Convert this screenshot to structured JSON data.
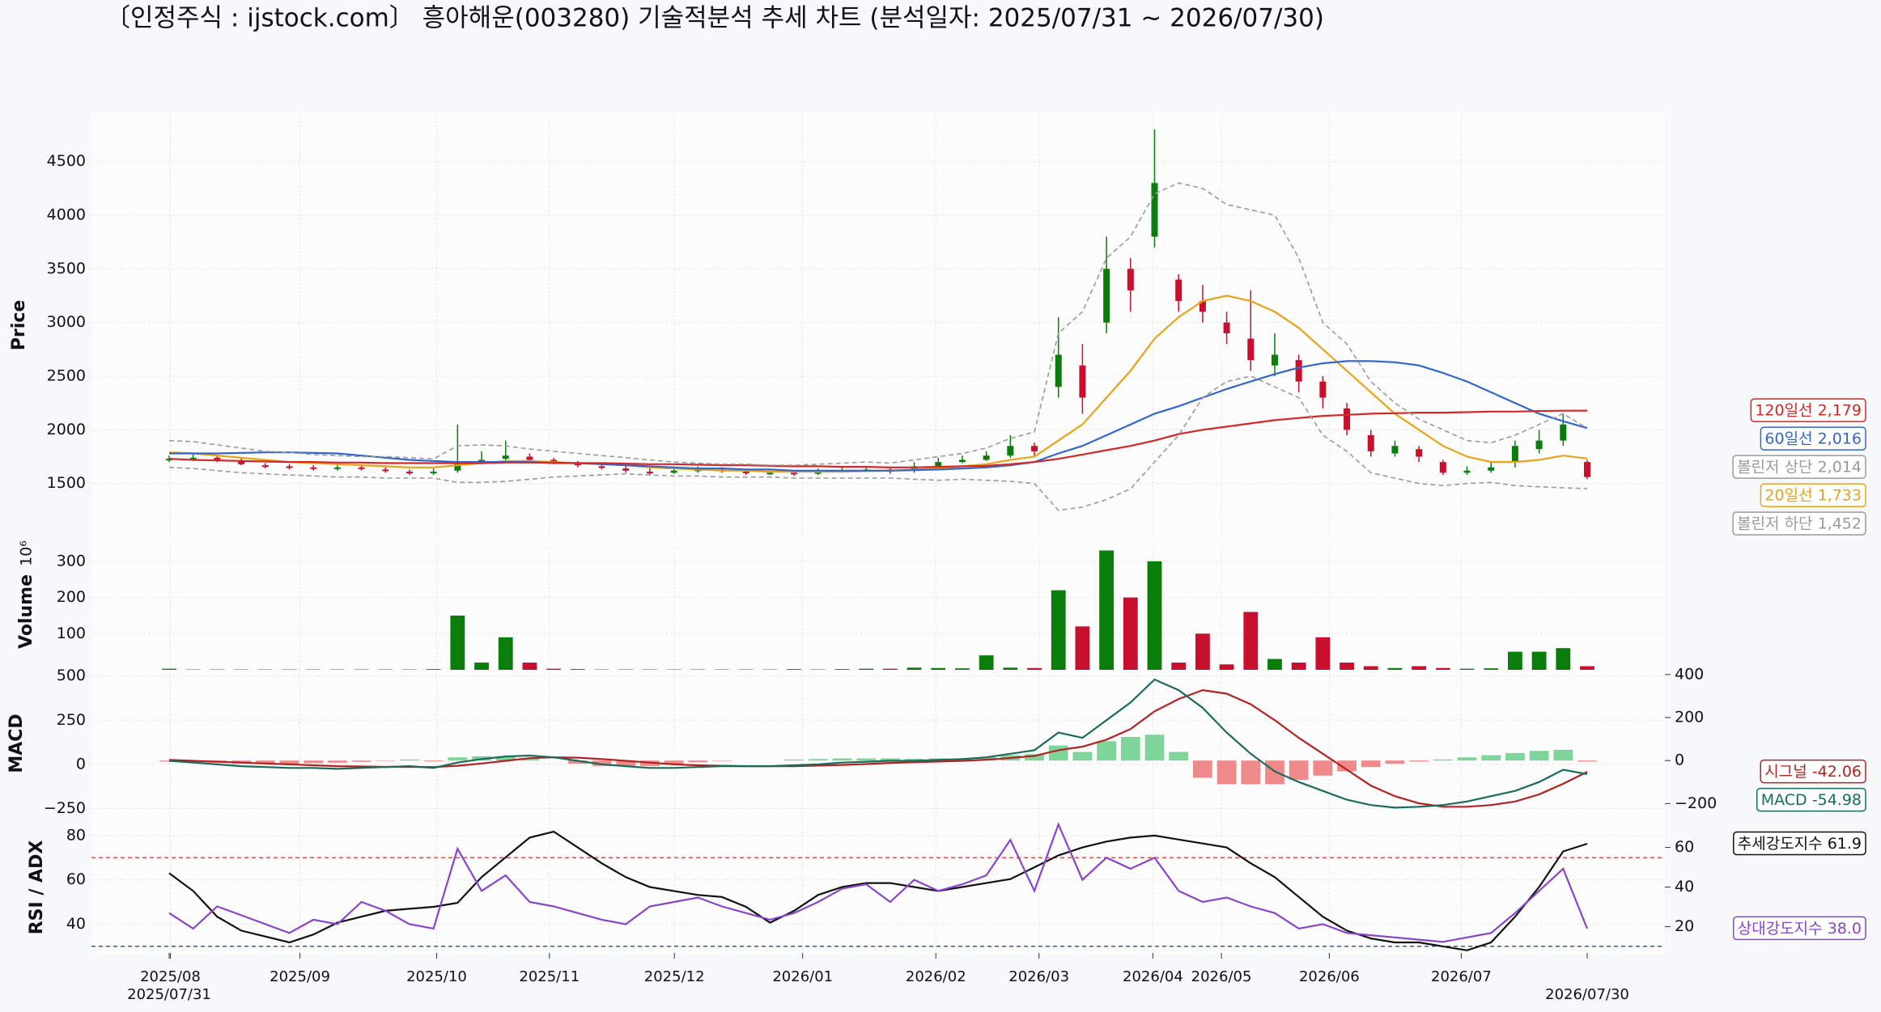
{
  "chart_data": [
    {
      "type": "candlestick",
      "title": "〔인정주식 : ijstock.com〕 흥아해운(003280) 기술적분석 추세 차트 (분석일자: 2025/07/31 ~ 2026/07/30)",
      "ylabel": "Price",
      "ylim": [
        1000,
        4950
      ],
      "yticks": [
        1500,
        2000,
        2500,
        3000,
        3500,
        4000,
        4500
      ],
      "grid": true,
      "ohlc": {
        "up_color": "#0a7d0a",
        "down_color": "#c8102e",
        "open": [
          1720,
          1730,
          1740,
          1710,
          1670,
          1660,
          1650,
          1640,
          1650,
          1630,
          1610,
          1600,
          1620,
          1700,
          1730,
          1750,
          1720,
          1690,
          1660,
          1640,
          1610,
          1600,
          1620,
          1630,
          1610,
          1600,
          1600,
          1590,
          1610,
          1620,
          1630,
          1620,
          1660,
          1700,
          1720,
          1760,
          1850,
          2400,
          2600,
          3000,
          3500,
          3800,
          3400,
          3200,
          3000,
          2850,
          2600,
          2650,
          2450,
          2200,
          1950,
          1780,
          1820,
          1700,
          1600,
          1620,
          1700,
          1820,
          1900,
          1700
        ],
        "high": [
          1760,
          1770,
          1760,
          1730,
          1690,
          1680,
          1670,
          1670,
          1670,
          1650,
          1630,
          1640,
          2050,
          1800,
          1900,
          1780,
          1740,
          1710,
          1680,
          1660,
          1640,
          1650,
          1660,
          1650,
          1630,
          1620,
          1620,
          1640,
          1650,
          1660,
          1650,
          1700,
          1740,
          1760,
          1800,
          1950,
          1880,
          3050,
          2800,
          3800,
          3600,
          4800,
          3450,
          3350,
          3100,
          3300,
          2900,
          2700,
          2500,
          2250,
          2000,
          1900,
          1850,
          1720,
          1660,
          1700,
          1900,
          2000,
          2150,
          1720
        ],
        "low": [
          1700,
          1710,
          1700,
          1670,
          1640,
          1630,
          1620,
          1620,
          1620,
          1600,
          1580,
          1580,
          1600,
          1680,
          1710,
          1700,
          1680,
          1650,
          1630,
          1600,
          1580,
          1590,
          1600,
          1600,
          1580,
          1580,
          1570,
          1580,
          1600,
          1610,
          1590,
          1600,
          1650,
          1690,
          1710,
          1740,
          1760,
          2300,
          2150,
          2900,
          3100,
          3700,
          3100,
          3000,
          2800,
          2550,
          2500,
          2350,
          2200,
          1950,
          1750,
          1750,
          1700,
          1580,
          1580,
          1600,
          1650,
          1780,
          1850,
          1540
        ],
        "close": [
          1730,
          1740,
          1720,
          1680,
          1660,
          1650,
          1640,
          1650,
          1640,
          1620,
          1600,
          1610,
          1700,
          1720,
          1760,
          1720,
          1700,
          1670,
          1650,
          1620,
          1600,
          1620,
          1630,
          1620,
          1600,
          1600,
          1590,
          1610,
          1620,
          1630,
          1610,
          1660,
          1700,
          1720,
          1760,
          1850,
          1800,
          2700,
          2300,
          3500,
          3300,
          4300,
          3200,
          3100,
          2900,
          2650,
          2700,
          2450,
          2300,
          2000,
          1800,
          1850,
          1750,
          1600,
          1620,
          1650,
          1850,
          1900,
          2050,
          1560
        ]
      },
      "series": [
        {
          "name": "20일선",
          "end_label": "1,733",
          "color": "#e8a317",
          "dash": false,
          "values": [
            1790,
            1780,
            1760,
            1740,
            1720,
            1700,
            1690,
            1680,
            1670,
            1660,
            1650,
            1650,
            1670,
            1690,
            1710,
            1710,
            1700,
            1690,
            1680,
            1670,
            1650,
            1640,
            1630,
            1620,
            1620,
            1610,
            1610,
            1610,
            1610,
            1615,
            1620,
            1630,
            1640,
            1660,
            1680,
            1720,
            1750,
            1900,
            2050,
            2300,
            2550,
            2850,
            3050,
            3200,
            3250,
            3200,
            3100,
            2950,
            2750,
            2550,
            2350,
            2150,
            2000,
            1850,
            1750,
            1700,
            1700,
            1720,
            1760,
            1733
          ]
        },
        {
          "name": "60일선",
          "end_label": "2,016",
          "color": "#3366cc",
          "dash": false,
          "values": [
            1780,
            1780,
            1780,
            1785,
            1790,
            1790,
            1785,
            1780,
            1760,
            1740,
            1720,
            1710,
            1700,
            1700,
            1700,
            1700,
            1690,
            1690,
            1680,
            1670,
            1660,
            1650,
            1640,
            1640,
            1630,
            1630,
            1620,
            1620,
            1620,
            1620,
            1620,
            1625,
            1630,
            1640,
            1650,
            1670,
            1700,
            1780,
            1850,
            1950,
            2050,
            2150,
            2220,
            2300,
            2380,
            2450,
            2520,
            2580,
            2620,
            2640,
            2640,
            2630,
            2600,
            2530,
            2450,
            2350,
            2250,
            2150,
            2080,
            2016
          ]
        },
        {
          "name": "120일선",
          "end_label": "2,179",
          "color": "#d62728",
          "dash": false,
          "values": [
            1730,
            1720,
            1715,
            1710,
            1705,
            1700,
            1700,
            1695,
            1695,
            1690,
            1690,
            1690,
            1690,
            1690,
            1695,
            1695,
            1695,
            1690,
            1690,
            1685,
            1680,
            1680,
            1675,
            1670,
            1670,
            1665,
            1660,
            1660,
            1655,
            1655,
            1650,
            1650,
            1655,
            1660,
            1665,
            1680,
            1700,
            1730,
            1770,
            1810,
            1850,
            1900,
            1960,
            2000,
            2030,
            2060,
            2090,
            2110,
            2130,
            2140,
            2150,
            2155,
            2160,
            2160,
            2165,
            2170,
            2170,
            2175,
            2178,
            2179
          ]
        },
        {
          "name": "볼린저 상단",
          "end_label": "2,014",
          "color": "#9a9a9a",
          "dash": true,
          "values": [
            1900,
            1890,
            1860,
            1830,
            1800,
            1790,
            1770,
            1760,
            1750,
            1750,
            1740,
            1730,
            1850,
            1860,
            1850,
            1820,
            1800,
            1780,
            1760,
            1740,
            1720,
            1700,
            1690,
            1680,
            1680,
            1670,
            1670,
            1680,
            1690,
            1700,
            1690,
            1720,
            1750,
            1780,
            1830,
            1920,
            1980,
            2900,
            3100,
            3600,
            3800,
            4200,
            4300,
            4250,
            4100,
            4050,
            4000,
            3600,
            3000,
            2800,
            2450,
            2250,
            2100,
            2000,
            1900,
            1880,
            1950,
            2050,
            2150,
            2014
          ]
        },
        {
          "name": "볼린저 하단",
          "end_label": "1,452",
          "color": "#9a9a9a",
          "dash": true,
          "values": [
            1650,
            1640,
            1620,
            1600,
            1590,
            1580,
            1570,
            1560,
            1560,
            1550,
            1550,
            1550,
            1510,
            1510,
            1520,
            1540,
            1560,
            1570,
            1580,
            1590,
            1580,
            1570,
            1570,
            1560,
            1560,
            1560,
            1550,
            1550,
            1550,
            1550,
            1550,
            1540,
            1530,
            1540,
            1530,
            1520,
            1500,
            1250,
            1280,
            1350,
            1450,
            1700,
            1950,
            2300,
            2450,
            2500,
            2400,
            2300,
            1950,
            1800,
            1600,
            1550,
            1500,
            1480,
            1500,
            1510,
            1480,
            1470,
            1460,
            1452
          ]
        }
      ]
    },
    {
      "type": "bar",
      "ylabel": "Volume",
      "scale_label": "10⁶",
      "ylim": [
        0,
        340
      ],
      "yticks": [
        100,
        200,
        300
      ],
      "grid": true,
      "values": [
        3,
        1,
        1,
        1,
        1,
        1,
        1,
        1,
        1,
        1,
        1,
        2,
        150,
        20,
        90,
        20,
        3,
        2,
        1,
        1,
        1,
        1,
        1,
        1,
        1,
        1,
        2,
        1,
        2,
        3,
        3,
        6,
        5,
        4,
        40,
        6,
        5,
        220,
        120,
        330,
        200,
        300,
        20,
        100,
        15,
        160,
        30,
        20,
        90,
        20,
        10,
        5,
        10,
        5,
        3,
        4,
        50,
        50,
        60,
        10
      ]
    },
    {
      "type": "line",
      "ylabel": "MACD",
      "ylim": [
        -330,
        535
      ],
      "yticks": [
        {
          "value": -250,
          "label": "−250"
        },
        0,
        250,
        500
      ],
      "y2lim": [
        -289,
        422
      ],
      "y2ticks": [
        {
          "value": -200,
          "label": "−200"
        },
        0,
        200,
        400
      ],
      "grid": true,
      "series": [
        {
          "type": "bar",
          "axis": "y2",
          "pos_color": "#7fd49a",
          "neg_color": "#f08a8a",
          "values": [
            -5,
            -10,
            -10,
            -15,
            -15,
            -15,
            -12,
            -10,
            -6,
            -2,
            5,
            -4,
            15,
            20,
            20,
            12,
            0,
            -15,
            -25,
            -25,
            -25,
            -15,
            -8,
            -2,
            0,
            0,
            5,
            7,
            10,
            10,
            10,
            8,
            10,
            10,
            15,
            25,
            30,
            70,
            40,
            90,
            110,
            120,
            40,
            -80,
            -110,
            -110,
            -110,
            -90,
            -70,
            -50,
            -30,
            -15,
            -5,
            5,
            15,
            25,
            35,
            45,
            50,
            -5
          ]
        },
        {
          "name": "시그널",
          "end_label": "-42.06",
          "color": "#b22222",
          "values": [
            25,
            20,
            15,
            10,
            5,
            0,
            -5,
            -10,
            -12,
            -14,
            -14,
            -15,
            -8,
            5,
            20,
            35,
            40,
            38,
            30,
            20,
            10,
            0,
            -5,
            -8,
            -10,
            -10,
            -10,
            -7,
            -3,
            2,
            8,
            12,
            16,
            20,
            26,
            36,
            48,
            80,
            100,
            140,
            200,
            300,
            370,
            420,
            400,
            340,
            250,
            150,
            60,
            -30,
            -120,
            -180,
            -220,
            -240,
            -240,
            -230,
            -210,
            -170,
            -110,
            -42.06
          ]
        },
        {
          "name": "MACD",
          "end_label": "-54.98",
          "color": "#1a6b5a",
          "values": [
            20,
            10,
            0,
            -10,
            -15,
            -20,
            -20,
            -25,
            -20,
            -15,
            -10,
            -20,
            10,
            30,
            45,
            50,
            40,
            20,
            0,
            -10,
            -20,
            -20,
            -15,
            -10,
            -10,
            -10,
            -5,
            0,
            10,
            15,
            20,
            20,
            25,
            30,
            40,
            60,
            80,
            180,
            150,
            250,
            350,
            480,
            420,
            320,
            180,
            60,
            -40,
            -100,
            -150,
            -200,
            -230,
            -245,
            -240,
            -230,
            -210,
            -180,
            -150,
            -100,
            -30,
            -54.98
          ]
        }
      ]
    },
    {
      "type": "line",
      "ylabel": "RSI / ADX",
      "ylim": [
        27,
        85.4
      ],
      "yticks": [
        40,
        60,
        80
      ],
      "y2lim": [
        6.7,
        72.1
      ],
      "y2ticks": [
        20,
        40,
        60
      ],
      "grid": true,
      "hlines": [
        {
          "value": 70,
          "color": "#d9534f"
        },
        {
          "value": 30,
          "color": "#1f5fbf"
        }
      ],
      "xticks": [
        {
          "value": 0.05,
          "label": "2025/08"
        },
        {
          "value": 5.44,
          "label": "2025/09"
        },
        {
          "value": 11.13,
          "label": "2025/10"
        },
        {
          "value": 15.82,
          "label": "2025/11"
        },
        {
          "value": 21.02,
          "label": "2025/12"
        },
        {
          "value": 26.36,
          "label": "2026/01"
        },
        {
          "value": 31.9,
          "label": "2026/02"
        },
        {
          "value": 36.19,
          "label": "2026/03"
        },
        {
          "value": 40.93,
          "label": "2026/04"
        },
        {
          "value": 43.78,
          "label": "2026/05"
        },
        {
          "value": 48.27,
          "label": "2026/06"
        },
        {
          "value": 53.76,
          "label": "2026/07"
        }
      ],
      "x_end_ticks": [
        {
          "value": 0,
          "label": "2025/07/31"
        },
        {
          "value": 59,
          "label": "2026/07/30"
        }
      ],
      "series": [
        {
          "name": "추세강도지수",
          "end_label": "61.9",
          "color": "#111111",
          "axis": "y2",
          "values": [
            47,
            38,
            25,
            18,
            15,
            12,
            16,
            22,
            25,
            28,
            29,
            30,
            32,
            45,
            55,
            65,
            68,
            60,
            52,
            45,
            40,
            38,
            36,
            35,
            30,
            22,
            28,
            36,
            40,
            42,
            42,
            40,
            38,
            40,
            42,
            44,
            50,
            56,
            60,
            63,
            65,
            66,
            64,
            62,
            60,
            52,
            45,
            35,
            25,
            18,
            14,
            12,
            12,
            10,
            8,
            12,
            25,
            40,
            58,
            61.9
          ]
        },
        {
          "name": "상대강도지수",
          "end_label": "38.0",
          "color": "#8844cc",
          "values": [
            45,
            38,
            48,
            44,
            40,
            36,
            42,
            40,
            50,
            46,
            40,
            38,
            74,
            55,
            62,
            50,
            48,
            45,
            42,
            40,
            48,
            50,
            52,
            48,
            45,
            42,
            45,
            50,
            56,
            58,
            50,
            60,
            55,
            58,
            62,
            78,
            55,
            85,
            60,
            70,
            65,
            70,
            55,
            50,
            52,
            48,
            45,
            38,
            40,
            36,
            35,
            34,
            33,
            32,
            34,
            36,
            45,
            55,
            65,
            38
          ]
        }
      ]
    }
  ]
}
